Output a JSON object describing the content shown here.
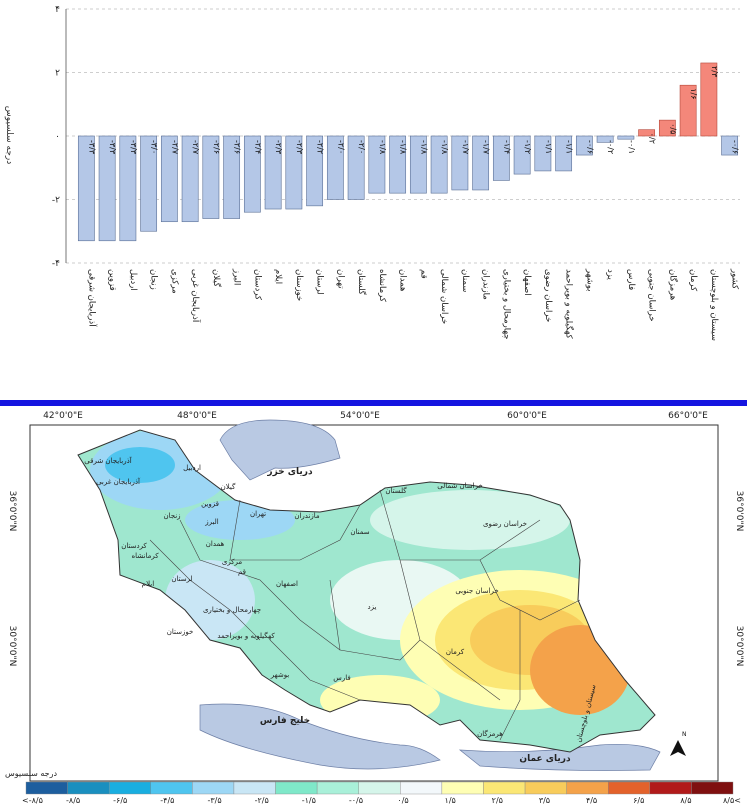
{
  "chart_data": {
    "type": "bar",
    "ylabel": "درجه سلسیوس",
    "ylim": [
      -4,
      4
    ],
    "yticks": [
      4,
      2,
      0,
      -2,
      -4
    ],
    "ytick_labels": [
      "۴",
      "۲",
      "۰",
      "-۲",
      "-۴"
    ],
    "grid": true,
    "categories": [
      "آذربایجان شرقی",
      "قزوین",
      "اردبیل",
      "زنجان",
      "مرکزی",
      "آذربایجان غربی",
      "گیلان",
      "البرز",
      "کردستان",
      "ایلام",
      "خوزستان",
      "لرستان",
      "تهران",
      "گلستان",
      "کرمانشاه",
      "همدان",
      "قم",
      "خراسان شمالی",
      "سمنان",
      "مازندران",
      "چهارمحال و بختیاری",
      "اصفهان",
      "خراسان رضوی",
      "کهگیلویه و بویراحمد",
      "بوشهر",
      "یزد",
      "فارس",
      "خراسان جنوبی",
      "هرمزگان",
      "کرمان",
      "سیستان و بلوچستان",
      "کشور"
    ],
    "values": [
      -3.3,
      -3.3,
      -3.3,
      -3.0,
      -2.7,
      -2.7,
      -2.6,
      -2.6,
      -2.4,
      -2.3,
      -2.3,
      -2.2,
      -2.0,
      -2.0,
      -1.8,
      -1.8,
      -1.8,
      -1.8,
      -1.7,
      -1.7,
      -1.4,
      -1.2,
      -1.1,
      -1.1,
      -0.6,
      -0.2,
      -0.1,
      0.2,
      0.5,
      1.6,
      2.3,
      -0.6
    ],
    "value_labels": [
      "-۳/۳",
      "-۳/۳",
      "-۳/۳",
      "-۳/۰",
      "-۲/۷",
      "-۲/۷",
      "-۲/۶",
      "-۲/۶",
      "-۲/۴",
      "-۲/۳",
      "-۲/۳",
      "-۲/۲",
      "-۲/۰",
      "-۲/۰",
      "-۱/۸",
      "-۱/۸",
      "-۱/۸",
      "-۱/۸",
      "-۱/۷",
      "-۱/۷",
      "-۱/۴",
      "-۱/۲",
      "-۱/۱",
      "-۱/۱",
      "-۰/۶",
      "-۰/۲",
      "-۰/۱",
      "۰/۲",
      "۰/۵",
      "۱/۶",
      "۲/۳",
      "-۰/۶"
    ],
    "colors": {
      "negative": "#b4c7e7",
      "positive": "#f4877a",
      "negative_edge": "#5a6f95",
      "positive_edge": "#b5483a"
    }
  },
  "map": {
    "longitude_labels": [
      "42°0'0\"E",
      "48°0'0\"E",
      "54°0'0\"E",
      "60°0'0\"E",
      "66°0'0\"E"
    ],
    "latitude_labels": [
      "36°0'0\"N",
      "30°0'0\"N"
    ],
    "labels": {
      "caspian": "دریای خزر",
      "gulf": "خلیج فارس",
      "oman": "دریای عمان",
      "provinces": [
        "آذربایجان شرقی",
        "اردبیل",
        "آذربایجان غربی",
        "گیلان",
        "مازندران",
        "گلستان",
        "خراسان شمالی",
        "خراسان رضوی",
        "سمنان",
        "تهران",
        "قزوین",
        "زنجان",
        "کردستان",
        "کرمانشاه",
        "همدان",
        "مرکزی",
        "قم",
        "لرستان",
        "ایلام",
        "خوزستان",
        "اصفهان",
        "چهارمحال و بختیاری",
        "کهگیلویه و بویراحمد",
        "یزد",
        "فارس",
        "بوشهر",
        "خراسان جنوبی",
        "کرمان",
        "هرمزگان",
        "سیستان و بلوچستان",
        "البرز"
      ]
    },
    "north_symbol": "N"
  },
  "legend": {
    "title": "درجه سلسیوس",
    "labels": [
      "<-۸/۵",
      "-۸/۵",
      "-۶/۵",
      "-۴/۵",
      "-۳/۵",
      "-۲/۵",
      "-۱/۵",
      "-۰/۵",
      "۰/۵",
      "۱/۵",
      "۲/۵",
      "۳/۵",
      "۴/۵",
      "۶/۵",
      "۸/۵",
      "۸/۵<"
    ],
    "colors": [
      "#1d5e9e",
      "#1a8fbf",
      "#19aee0",
      "#4fc5ef",
      "#9dd7f5",
      "#c9e6f5",
      "#7fe8c9",
      "#a9f0d9",
      "#d5f5ea",
      "#f3f8fb",
      "#fefeb4",
      "#fbe775",
      "#f8cc5b",
      "#f4a24a",
      "#e3622b",
      "#b11a1a",
      "#7f1010"
    ]
  }
}
